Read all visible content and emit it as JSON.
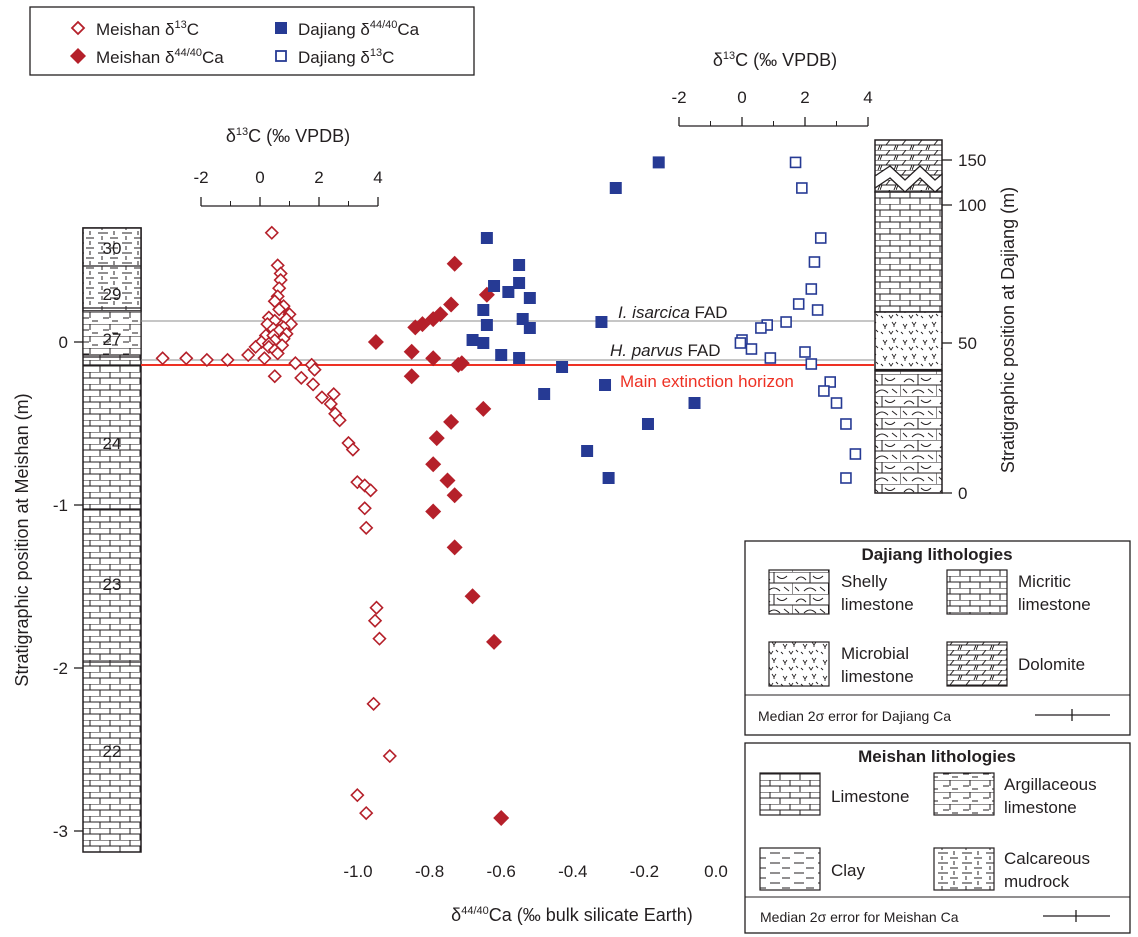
{
  "colors": {
    "meishan_red": "#b5202a",
    "dajiang_blue": "#263a94",
    "extinction_red": "#ee3124",
    "fad_gray": "#8c8c8c",
    "ink": "#231f20"
  },
  "legend": {
    "items": [
      {
        "name": "Meishan δ13C",
        "label_main": "Meishan δ",
        "sup": "13",
        "label_tail": "C",
        "marker": "diamond-open",
        "color": "#b5202a"
      },
      {
        "name": "Meishan δ44/40Ca",
        "label_main": "Meishan δ",
        "sup": "44/40",
        "label_tail": "Ca",
        "marker": "diamond-filled",
        "color": "#b5202a"
      },
      {
        "name": "Dajiang δ44/40Ca",
        "label_main": "Dajiang δ",
        "sup": "44/40",
        "label_tail": "Ca",
        "marker": "square-filled",
        "color": "#263a94"
      },
      {
        "name": "Dajiang δ13C",
        "label_main": "Dajiang δ",
        "sup": "13",
        "label_tail": "C",
        "marker": "square-open",
        "color": "#263a94"
      }
    ]
  },
  "labels": {
    "i_isarcica_species": "I. isarcica",
    "i_isarcica_suffix": " FAD",
    "h_parvus_species": "H. parvus",
    "h_parvus_suffix": " FAD",
    "main_extinction": "Main extinction horizon",
    "bottom_axis_title_main": "δ",
    "bottom_axis_title_sup": "44/40",
    "bottom_axis_title_tail": "Ca (‰ bulk silicate Earth)",
    "left_axis_title": "Stratigraphic position at Meishan (m)",
    "right_axis_title": "Stratigraphic position at Dajiang (m)",
    "top_c_title_main": "δ",
    "top_c_title_sup": "13",
    "top_c_title_tail": "C (‰ VPDB)",
    "unit_numbers": [
      "30",
      "29",
      "27",
      "24",
      "23",
      "22"
    ]
  },
  "dajiang_legend": {
    "title": "Dajiang lithologies",
    "items": [
      {
        "line1": "Shelly",
        "line2": "limestone",
        "pattern": "shelly"
      },
      {
        "line1": "Micritic",
        "line2": "limestone",
        "pattern": "brick"
      },
      {
        "line1": "Microbial",
        "line2": "limestone",
        "pattern": "microbial"
      },
      {
        "line1": "Dolomite",
        "line2": "",
        "pattern": "dolomite"
      }
    ],
    "error_label": "Median 2σ error for Dajiang Ca"
  },
  "meishan_legend": {
    "title": "Meishan lithologies",
    "items": [
      {
        "line1": "Limestone",
        "line2": "",
        "pattern": "brick"
      },
      {
        "line1": "Argillaceous",
        "line2": "limestone",
        "pattern": "argillaceous"
      },
      {
        "line1": "Clay",
        "line2": "",
        "pattern": "clay"
      },
      {
        "line1": "Calcareous",
        "line2": "mudrock",
        "pattern": "mudrock"
      }
    ],
    "error_label": "Median 2σ error for Meishan Ca"
  },
  "chart_data": {
    "type": "scatter",
    "xlabel": "δ44/40Ca (‰ bulk silicate Earth)",
    "ylabel_left": "Stratigraphic position at Meishan (m)",
    "ylabel_right": "Stratigraphic position at Dajiang (m)",
    "x_ca": {
      "range": [
        -1.0,
        0.0
      ],
      "ticks": [
        "-1.0",
        "-0.8",
        "-0.6",
        "-0.4",
        "-0.2",
        "0.0"
      ],
      "tick_values": [
        -1.0,
        -0.8,
        -0.6,
        -0.4,
        -0.2,
        0.0
      ]
    },
    "y_meishan": {
      "range": [
        -3.0,
        0.0
      ],
      "ticks": [
        "0",
        "-1",
        "-2",
        "-3"
      ],
      "tick_values": [
        0,
        -1,
        -2,
        -3
      ]
    },
    "y_dajiang": {
      "ticks": [
        "0",
        "50",
        "100",
        "150"
      ],
      "tick_values": [
        0,
        50,
        100,
        150
      ],
      "note": "axis break between 100 and 150"
    },
    "x_c_meishan": {
      "ticks": [
        "-2",
        "0",
        "2",
        "4"
      ],
      "tick_values": [
        -2,
        0,
        2,
        4
      ]
    },
    "x_c_dajiang": {
      "ticks": [
        "-2",
        "0",
        "2",
        "4"
      ],
      "tick_values": [
        -2,
        0,
        2,
        4
      ]
    },
    "series": [
      {
        "name": "Meishan δ13C",
        "axis": "meishan",
        "points": [
          [
            0.4,
            0.67
          ],
          [
            0.6,
            0.47
          ],
          [
            0.7,
            0.42
          ],
          [
            0.7,
            0.38
          ],
          [
            0.65,
            0.33
          ],
          [
            0.6,
            0.28
          ],
          [
            0.5,
            0.25
          ],
          [
            0.8,
            0.22
          ],
          [
            0.65,
            0.2
          ],
          [
            1.0,
            0.17
          ],
          [
            0.3,
            0.15
          ],
          [
            0.9,
            0.14
          ],
          [
            0.5,
            0.13
          ],
          [
            1.05,
            0.11
          ],
          [
            0.25,
            0.11
          ],
          [
            0.8,
            0.09
          ],
          [
            0.45,
            0.08
          ],
          [
            0.65,
            0.07
          ],
          [
            0.9,
            0.05
          ],
          [
            0.2,
            0.04
          ],
          [
            0.45,
            0.04
          ],
          [
            0.8,
            0.02
          ],
          [
            0.5,
            0.01
          ],
          [
            0.05,
            0.0
          ],
          [
            0.3,
            -0.01
          ],
          [
            0.75,
            -0.02
          ],
          [
            -0.15,
            -0.03
          ],
          [
            0.3,
            -0.03
          ],
          [
            0.5,
            -0.05
          ],
          [
            0.6,
            -0.07
          ],
          [
            -0.4,
            -0.08
          ],
          [
            0.15,
            -0.1
          ],
          [
            -3.3,
            -0.1
          ],
          [
            -2.5,
            -0.1
          ],
          [
            -1.8,
            -0.11
          ],
          [
            -1.1,
            -0.11
          ],
          [
            1.2,
            -0.13
          ],
          [
            1.75,
            -0.14
          ],
          [
            1.85,
            -0.17
          ],
          [
            1.4,
            -0.22
          ],
          [
            0.5,
            -0.21
          ],
          [
            1.8,
            -0.26
          ],
          [
            2.1,
            -0.34
          ],
          [
            2.5,
            -0.32
          ],
          [
            2.4,
            -0.38
          ],
          [
            2.55,
            -0.44
          ],
          [
            2.7,
            -0.48
          ],
          [
            3.0,
            -0.62
          ],
          [
            3.15,
            -0.66
          ],
          [
            3.3,
            -0.86
          ],
          [
            3.55,
            -0.88
          ],
          [
            3.75,
            -0.91
          ],
          [
            3.55,
            -1.02
          ],
          [
            3.6,
            -1.14
          ],
          [
            3.95,
            -1.63
          ],
          [
            3.9,
            -1.71
          ],
          [
            4.05,
            -1.82
          ],
          [
            3.85,
            -2.22
          ],
          [
            4.4,
            -2.54
          ],
          [
            3.3,
            -2.78
          ],
          [
            3.6,
            -2.89
          ]
        ]
      },
      {
        "name": "Meishan δ44/40Ca",
        "axis": "meishan",
        "points": [
          [
            -0.64,
            0.29
          ],
          [
            -0.73,
            0.48
          ],
          [
            -0.74,
            0.23
          ],
          [
            -0.77,
            0.17
          ],
          [
            -0.79,
            0.14
          ],
          [
            -0.82,
            0.11
          ],
          [
            -0.84,
            0.09
          ],
          [
            -0.95,
            0.0
          ],
          [
            -0.85,
            -0.06
          ],
          [
            -0.79,
            -0.1
          ],
          [
            -0.72,
            -0.14
          ],
          [
            -0.71,
            -0.13
          ],
          [
            -0.85,
            -0.21
          ],
          [
            -0.65,
            -0.41
          ],
          [
            -0.74,
            -0.49
          ],
          [
            -0.78,
            -0.59
          ],
          [
            -0.79,
            -0.75
          ],
          [
            -0.75,
            -0.85
          ],
          [
            -0.73,
            -0.94
          ],
          [
            -0.79,
            -1.04
          ],
          [
            -0.73,
            -1.26
          ],
          [
            -0.68,
            -1.56
          ],
          [
            -0.62,
            -1.84
          ],
          [
            -0.6,
            -2.92
          ]
        ]
      },
      {
        "name": "Dajiang δ44/40Ca",
        "axis": "dajiang",
        "points": [
          [
            -0.16,
            147
          ],
          [
            -0.28,
            110
          ],
          [
            -0.64,
            85
          ],
          [
            -0.55,
            76
          ],
          [
            -0.55,
            70
          ],
          [
            -0.62,
            69
          ],
          [
            -0.58,
            67
          ],
          [
            -0.52,
            65
          ],
          [
            -0.65,
            61
          ],
          [
            -0.54,
            58
          ],
          [
            -0.32,
            57
          ],
          [
            -0.64,
            56
          ],
          [
            -0.52,
            55
          ],
          [
            -0.68,
            51
          ],
          [
            -0.65,
            50
          ],
          [
            -0.6,
            46
          ],
          [
            -0.55,
            45
          ],
          [
            -0.43,
            42
          ],
          [
            -0.31,
            36
          ],
          [
            -0.48,
            33
          ],
          [
            -0.06,
            30
          ],
          [
            -0.19,
            23
          ],
          [
            -0.36,
            14
          ],
          [
            -0.3,
            5
          ]
        ]
      },
      {
        "name": "Dajiang δ13C",
        "axis": "dajiang",
        "points": [
          [
            1.7,
            147
          ],
          [
            1.9,
            110
          ],
          [
            2.5,
            85
          ],
          [
            2.3,
            77
          ],
          [
            2.2,
            68
          ],
          [
            1.8,
            63
          ],
          [
            2.4,
            61
          ],
          [
            1.4,
            57
          ],
          [
            0.8,
            56
          ],
          [
            0.6,
            55
          ],
          [
            0.0,
            51
          ],
          [
            -0.05,
            50
          ],
          [
            0.3,
            48
          ],
          [
            2.0,
            47
          ],
          [
            0.9,
            45
          ],
          [
            2.2,
            43
          ],
          [
            2.8,
            37
          ],
          [
            2.6,
            34
          ],
          [
            3.0,
            30
          ],
          [
            3.3,
            23
          ],
          [
            3.6,
            13
          ],
          [
            3.3,
            5
          ]
        ]
      }
    ],
    "horizons": [
      {
        "name": "I. isarcica FAD",
        "meishan_m": 0.14
      },
      {
        "name": "H. parvus FAD",
        "meishan_m": -0.11
      },
      {
        "name": "Main extinction horizon",
        "meishan_m": -0.14
      }
    ]
  }
}
